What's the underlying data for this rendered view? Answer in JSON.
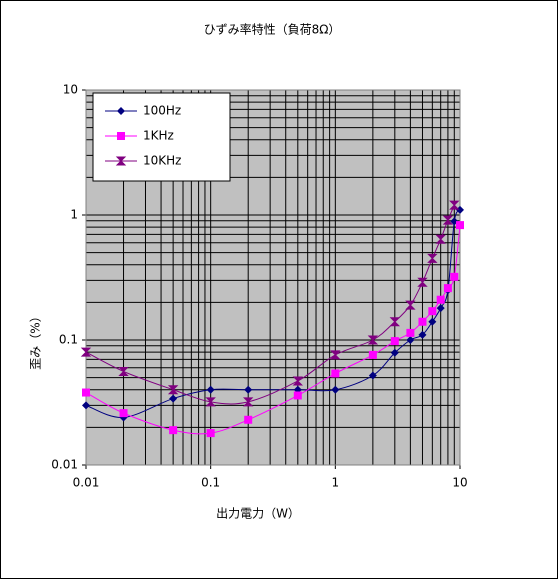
{
  "chart_data": {
    "type": "line",
    "title": "ひずみ率特性（負荷8Ω）",
    "x_label": "出力電力（W）",
    "y_label": "歪み（%）",
    "x": [
      0.01,
      0.02,
      0.05,
      0.1,
      0.2,
      0.5,
      1,
      2,
      3,
      4,
      5,
      6,
      7,
      8,
      9,
      10
    ],
    "series": [
      {
        "name": "100Hz",
        "color": "#000080",
        "marker": "diamond",
        "values": [
          0.03,
          0.024,
          0.034,
          0.04,
          0.04,
          0.04,
          0.04,
          0.052,
          0.079,
          0.1,
          0.11,
          0.14,
          0.18,
          0.25,
          0.89,
          1.1
        ]
      },
      {
        "name": "1KHz",
        "color": "#ff00ff",
        "marker": "square",
        "values": [
          0.038,
          0.026,
          0.019,
          0.018,
          0.023,
          0.036,
          0.054,
          0.076,
          0.098,
          0.114,
          0.14,
          0.17,
          0.21,
          0.26,
          0.32,
          0.83
        ]
      },
      {
        "name": "10KHz",
        "color": "#800080",
        "marker": "hourglass",
        "values": [
          0.08,
          0.056,
          0.04,
          0.032,
          0.032,
          0.047,
          0.076,
          0.1,
          0.14,
          0.19,
          0.29,
          0.45,
          0.64,
          0.91,
          1.2,
          null
        ]
      }
    ],
    "xlim": [
      0.01,
      10
    ],
    "ylim": [
      0.01,
      10
    ],
    "xticks": [
      0.01,
      0.1,
      1,
      10
    ],
    "yticks": [
      0.01,
      0.1,
      1,
      10
    ],
    "xlog": true,
    "ylog": true,
    "grid": true,
    "plot_background": "#c0c0c0",
    "legend": "upper left"
  }
}
